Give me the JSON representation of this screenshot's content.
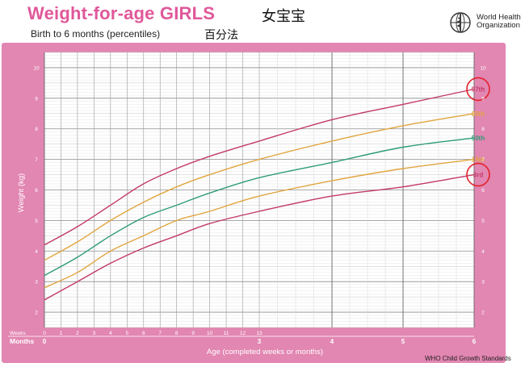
{
  "header": {
    "title": "Weight-for-age GIRLS",
    "title_cn": "女宝宝",
    "subtitle": "Birth to 6 months (percentiles)",
    "subtitle_cn": "百分法",
    "org_line1": "World Health",
    "org_line2": "Organization",
    "footer": "WHO Child Growth Standards"
  },
  "colors": {
    "frame": "#e286b2",
    "p97": "#c33a66",
    "p85": "#e1a53e",
    "p50": "#2e9c78",
    "p15": "#e1a53e",
    "p3": "#c33a66",
    "highlight_circle": "#e3232a"
  },
  "chart_data": {
    "type": "line",
    "xlabel": "Age (completed weeks or months)",
    "ylabel": "Weight (kg)",
    "ylim": [
      1.5,
      10.5
    ],
    "yticks": [
      2,
      3,
      4,
      5,
      6,
      7,
      8,
      9,
      10
    ],
    "x_units": "weeks",
    "xlim": [
      0,
      26
    ],
    "week_row_label": "Weeks",
    "month_row_label": "Months",
    "week_ticks": [
      "0",
      "1",
      "2",
      "3",
      "4",
      "5",
      "6",
      "7",
      "8",
      "9",
      "10",
      "11",
      "12",
      "13"
    ],
    "month_ticks": [
      {
        "label": "0",
        "week": 0
      },
      {
        "label": "3",
        "week": 13
      },
      {
        "label": "4",
        "week": 17.4
      },
      {
        "label": "5",
        "week": 21.7
      },
      {
        "label": "6",
        "week": 26
      }
    ],
    "x": [
      0,
      2,
      4,
      6,
      8,
      10,
      13,
      17.4,
      21.7,
      26
    ],
    "series": [
      {
        "name": "97th",
        "values": [
          4.2,
          4.8,
          5.5,
          6.2,
          6.7,
          7.1,
          7.6,
          8.3,
          8.8,
          9.3
        ],
        "highlighted": true
      },
      {
        "name": "85th",
        "values": [
          3.7,
          4.3,
          5.0,
          5.6,
          6.1,
          6.5,
          7.0,
          7.6,
          8.1,
          8.5
        ]
      },
      {
        "name": "50th",
        "values": [
          3.2,
          3.8,
          4.5,
          5.1,
          5.5,
          5.9,
          6.4,
          6.9,
          7.4,
          7.7
        ]
      },
      {
        "name": "15th",
        "values": [
          2.8,
          3.3,
          4.0,
          4.5,
          5.0,
          5.3,
          5.8,
          6.3,
          6.7,
          7.0
        ]
      },
      {
        "name": "3rd",
        "values": [
          2.4,
          3.0,
          3.6,
          4.1,
          4.5,
          4.9,
          5.3,
          5.8,
          6.1,
          6.5
        ],
        "highlighted": true
      }
    ]
  }
}
